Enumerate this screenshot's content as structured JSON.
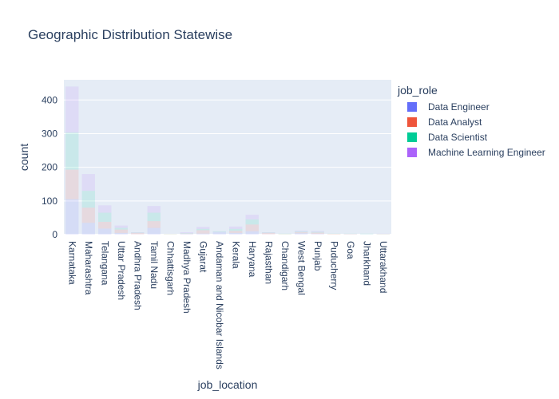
{
  "chart_data": {
    "type": "bar",
    "barmode": "stack",
    "title": "Geographic Distribution Statewise",
    "xlabel": "job_location",
    "ylabel": "count",
    "ylim": [
      0,
      460
    ],
    "yticks": [
      0,
      100,
      200,
      300,
      400
    ],
    "grid": true,
    "legend_title": "job_role",
    "legend_position": "right",
    "categories": [
      "Karnataka",
      "Maharashtra",
      "Telangana",
      "Uttar Pradesh",
      "Andhra Pradesh",
      "Tamil Nadu",
      "Chhattisgarh",
      "Madhya Pradesh",
      "Gujarat",
      "Andaman and Nicobar Islands",
      "Kerala",
      "Haryana",
      "Rajasthan",
      "Chandigarh",
      "West Bengal",
      "Punjab",
      "Puducherry",
      "Goa",
      "Jharkhand",
      "Uttarakhand"
    ],
    "series": [
      {
        "name": "Data Engineer",
        "color": "#636efa",
        "values": [
          105,
          35,
          18,
          5,
          1,
          20,
          0,
          2,
          3,
          8,
          5,
          10,
          1,
          0,
          4,
          2,
          0,
          1,
          1,
          0
        ]
      },
      {
        "name": "Data Analyst",
        "color": "#ef553b",
        "values": [
          88,
          45,
          20,
          10,
          4,
          20,
          1,
          1,
          10,
          0,
          6,
          20,
          4,
          1,
          3,
          4,
          2,
          1,
          0,
          1
        ]
      },
      {
        "name": "Data Scientist",
        "color": "#00cc96",
        "values": [
          110,
          50,
          27,
          5,
          1,
          25,
          1,
          1,
          4,
          2,
          6,
          15,
          1,
          2,
          2,
          2,
          1,
          1,
          2,
          1
        ]
      },
      {
        "name": "Machine Learning Engineer",
        "color": "#ab63fa",
        "values": [
          137,
          50,
          22,
          7,
          1,
          20,
          0,
          3,
          6,
          0,
          7,
          14,
          1,
          0,
          3,
          3,
          0,
          0,
          0,
          1
        ]
      }
    ]
  }
}
